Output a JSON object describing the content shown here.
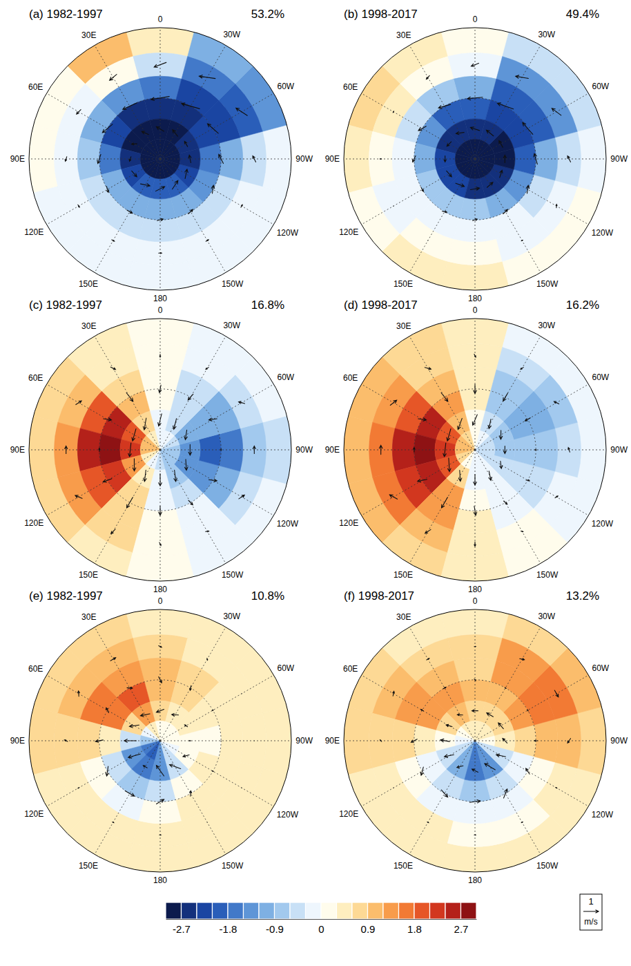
{
  "chart_data": {
    "type": "polar_map",
    "lat_range": [
      30,
      90
    ],
    "lat_circles": [
      60
    ],
    "lon_ticks": [
      0,
      {
        "value": 30,
        "label": "30E"
      },
      {
        "value": 60,
        "label": "60E"
      },
      {
        "value": 90,
        "label": "90E"
      },
      {
        "value": 120,
        "label": "120E"
      },
      {
        "value": 150,
        "label": "150E"
      },
      180,
      {
        "value": -150,
        "label": "150W"
      },
      {
        "value": -120,
        "label": "120W"
      },
      {
        "value": -90,
        "label": "90W"
      },
      {
        "value": -60,
        "label": "60W"
      },
      {
        "value": -30,
        "label": "30W"
      }
    ],
    "cell_lat_edges": [
      30,
      40,
      50,
      60,
      70,
      80,
      90
    ],
    "cell_lons": [
      0,
      30,
      60,
      90,
      120,
      150,
      180,
      -150,
      -120,
      -90,
      -60,
      -30
    ],
    "vector_lats": [
      45,
      60,
      75
    ],
    "colorbar": {
      "range": [
        -3,
        3
      ],
      "levels": [
        -2.7,
        -2.4,
        -2.1,
        -1.8,
        -1.5,
        -1.2,
        -0.9,
        -0.6,
        -0.3,
        0,
        0.3,
        0.6,
        0.9,
        1.2,
        1.5,
        1.8,
        2.1,
        2.4,
        2.7
      ],
      "colors": [
        "#0c1b4d",
        "#13307c",
        "#1a45a2",
        "#2a5eb9",
        "#4279c9",
        "#5e95d7",
        "#7eb0e3",
        "#a2c9ee",
        "#c8e0f6",
        "#eef6fd",
        "#fffcec",
        "#feeebf",
        "#fdd995",
        "#fbbd6c",
        "#f89c4b",
        "#f27a34",
        "#e65627",
        "#d2371f",
        "#b4211a",
        "#8e1214"
      ],
      "ticks": [
        -2.7,
        -1.8,
        -0.9,
        0,
        0.9,
        1.8,
        2.7
      ]
    },
    "reference_vector": {
      "value": 1,
      "label": "m/s"
    },
    "panels": [
      {
        "title": "(a) 1982-1997",
        "variance": {
          "value": 53.2,
          "label": "53.2%"
        },
        "field": [
          [
            0.3,
            0.9,
            0.1,
            0.1,
            -0.1,
            -0.2,
            -0.1,
            -0.1,
            -0.2,
            -0.3,
            -1.5,
            -1.2
          ],
          [
            -0.6,
            0,
            -0.3,
            -0.2,
            -0.3,
            -0.3,
            -0.3,
            -0.2,
            -0.3,
            -0.6,
            -2.1,
            -1.8
          ],
          [
            -1.8,
            -1.5,
            -1.2,
            -0.9,
            -0.6,
            -0.6,
            -0.6,
            -0.6,
            -0.6,
            -1.2,
            -2.4,
            -2.4
          ],
          [
            -2.7,
            -2.7,
            -2.4,
            -1.8,
            -1.2,
            -1.2,
            -1.2,
            -1.2,
            -1.5,
            -1.8,
            -2.4,
            -2.7
          ],
          [
            -3,
            -3,
            -3,
            -2.7,
            -2.4,
            -2.1,
            -2.1,
            -2.1,
            -2.4,
            -2.7,
            -2.7,
            -3
          ],
          [
            -3,
            -3,
            -3,
            -3,
            -3,
            -3,
            -3,
            -3,
            -3,
            -3,
            -3,
            -3
          ]
        ],
        "u": [
          [
            0.8,
            0.6,
            0.4,
            0.3,
            0.2,
            0.2,
            0.2,
            0.2,
            0.2,
            0.4,
            0.8,
            1.0
          ],
          [
            1.2,
            1.0,
            0.8,
            0.6,
            0.4,
            0.4,
            0.4,
            0.4,
            0.5,
            0.6,
            0.9,
            1.2
          ],
          [
            0.5,
            0.3,
            0.2,
            0.3,
            0.5,
            0.6,
            0.6,
            0.6,
            0.6,
            0.5,
            0.4,
            0.5
          ]
        ],
        "v": [
          [
            0.3,
            0.1,
            -0.1,
            -0.1,
            0,
            0,
            0,
            0,
            0,
            0.2,
            0.4,
            0.4
          ],
          [
            0.2,
            -0.1,
            -0.3,
            -0.2,
            -0.1,
            0,
            0.1,
            0.1,
            0.2,
            0.3,
            0.3,
            0.3
          ],
          [
            -0.3,
            -0.4,
            -0.3,
            -0.1,
            0.1,
            0.2,
            0.3,
            0.3,
            0.2,
            0.1,
            0,
            -0.2
          ]
        ]
      },
      {
        "title": "(b) 1998-2017",
        "variance": {
          "value": 49.4,
          "label": "49.4%"
        },
        "field": [
          [
            0,
            0.3,
            0.6,
            0.3,
            0.1,
            0.3,
            0.3,
            0.2,
            0,
            -0.3,
            -0.6,
            -0.6
          ],
          [
            -0.3,
            0,
            0.3,
            0,
            -0.1,
            0,
            0,
            -0.1,
            -0.2,
            -0.6,
            -1.5,
            -1.5
          ],
          [
            -1.2,
            -0.9,
            -0.6,
            -0.3,
            -0.3,
            -0.3,
            -0.3,
            -0.3,
            -0.6,
            -1.2,
            -2.1,
            -2.1
          ],
          [
            -2.1,
            -2.1,
            -1.5,
            -1.2,
            -0.9,
            -0.9,
            -0.9,
            -1.2,
            -1.5,
            -2.1,
            -2.4,
            -2.4
          ],
          [
            -2.7,
            -2.7,
            -2.7,
            -2.4,
            -2.4,
            -2.4,
            -2.7,
            -2.7,
            -2.7,
            -3,
            -3,
            -2.7
          ],
          [
            -3,
            -3,
            -3,
            -3,
            -3,
            -3,
            -3,
            -3,
            -3,
            -3,
            -3,
            -3
          ]
        ],
        "u": [
          [
            0.5,
            0.3,
            0.1,
            0,
            0,
            0,
            0,
            0.1,
            0.2,
            0.4,
            0.7,
            0.8
          ],
          [
            1.0,
            0.8,
            0.5,
            0.4,
            0.3,
            0.3,
            0.3,
            0.4,
            0.5,
            0.7,
            1.0,
            1.1
          ],
          [
            0.6,
            0.5,
            0.4,
            0.4,
            0.5,
            0.6,
            0.6,
            0.5,
            0.5,
            0.5,
            0.5,
            0.6
          ]
        ],
        "v": [
          [
            0.2,
            0.1,
            0,
            -0.1,
            0,
            0,
            0,
            0,
            0.1,
            0.2,
            0.3,
            0.3
          ],
          [
            0.1,
            -0.2,
            -0.3,
            -0.2,
            0,
            0.1,
            0.1,
            0.1,
            0.2,
            0.2,
            0.2,
            0.2
          ],
          [
            -0.2,
            -0.2,
            -0.1,
            0,
            0.1,
            0.1,
            0.1,
            0.1,
            0.1,
            0,
            0,
            -0.1
          ]
        ]
      },
      {
        "title": "(c) 1982-1997",
        "variance": {
          "value": 16.8,
          "label": "16.8%"
        },
        "field": [
          [
            0,
            0.3,
            0.6,
            0.6,
            0.6,
            0.3,
            0,
            -0.1,
            -0.3,
            -0.6,
            -0.3,
            -0.3
          ],
          [
            0,
            0.3,
            0.9,
            1.2,
            1.2,
            0.6,
            0,
            -0.3,
            -0.6,
            -0.9,
            -0.6,
            -0.3
          ],
          [
            0,
            0.6,
            1.8,
            2.4,
            1.8,
            0.6,
            0,
            -0.3,
            -1.2,
            -1.8,
            -1.2,
            -0.6
          ],
          [
            0,
            0.9,
            2.4,
            3,
            2.1,
            0.6,
            -0.3,
            -0.6,
            -1.5,
            -2.1,
            -1.2,
            -0.6
          ],
          [
            -0.3,
            0.6,
            1.8,
            2.1,
            1.2,
            0.3,
            -0.3,
            -0.9,
            -1.5,
            -1.5,
            -1.2,
            -0.6
          ],
          [
            -0.3,
            0.3,
            0.9,
            0.9,
            0.3,
            -0.3,
            -0.6,
            -0.9,
            -0.9,
            -0.9,
            -0.6,
            -0.3
          ]
        ],
        "u": [
          [
            0,
            -0.2,
            -0.4,
            -0.5,
            -0.4,
            -0.1,
            0.1,
            0.2,
            0.4,
            0.5,
            0.3,
            0.1
          ],
          [
            0.1,
            -0.1,
            -0.2,
            -0.2,
            -0.1,
            0,
            0,
            0.1,
            0.2,
            0.1,
            0.2,
            0.1
          ],
          [
            0.2,
            0.5,
            0.8,
            0.9,
            0.7,
            0.3,
            0,
            -0.3,
            -0.6,
            -0.7,
            -0.5,
            -0.2
          ]
        ],
        "v": [
          [
            0.2,
            0.3,
            0.2,
            0,
            -0.3,
            -0.4,
            -0.2,
            -0.1,
            -0.2,
            0,
            0.3,
            0.2
          ],
          [
            0.5,
            0.7,
            0.5,
            0,
            -0.6,
            -0.8,
            -0.6,
            -0.4,
            -0.5,
            0,
            0.5,
            0.5
          ],
          [
            0.8,
            0.6,
            0.2,
            -0.1,
            -0.4,
            -0.7,
            -0.8,
            -0.7,
            -0.4,
            0,
            0.4,
            0.7
          ]
        ]
      },
      {
        "title": "(d) 1998-2017",
        "variance": {
          "value": 16.2,
          "label": "16.2%"
        },
        "field": [
          [
            0.3,
            0.6,
            0.9,
            0.9,
            0.9,
            0.6,
            0.3,
            0,
            -0.1,
            -0.2,
            -0.3,
            -0.3
          ],
          [
            0.3,
            0.6,
            1.2,
            1.5,
            1.5,
            0.9,
            0.3,
            0,
            -0.3,
            -0.6,
            -0.9,
            -0.6
          ],
          [
            0.3,
            0.9,
            1.8,
            2.4,
            2.1,
            1.2,
            0.3,
            -0.1,
            -0.6,
            -0.9,
            -1.2,
            -0.9
          ],
          [
            0.3,
            1.2,
            2.4,
            2.7,
            2.4,
            1.2,
            0,
            -0.3,
            -0.6,
            -0.9,
            -1.2,
            -0.9
          ],
          [
            0,
            0.9,
            1.8,
            2.1,
            1.8,
            0.6,
            -0.1,
            -0.3,
            -0.6,
            -0.9,
            -0.9,
            -0.6
          ],
          [
            0,
            0.6,
            0.9,
            0.9,
            0.6,
            0,
            -0.3,
            -0.3,
            -0.6,
            -0.6,
            -0.6,
            -0.3
          ]
        ],
        "u": [
          [
            -0.1,
            -0.3,
            -0.5,
            -0.6,
            -0.5,
            -0.2,
            0,
            0.1,
            0.2,
            0.3,
            0.3,
            0.1
          ],
          [
            0,
            -0.1,
            -0.2,
            -0.3,
            -0.2,
            0,
            0.1,
            0.1,
            0.1,
            0,
            0,
            0
          ],
          [
            0.3,
            0.6,
            0.8,
            0.9,
            0.8,
            0.4,
            0,
            -0.2,
            -0.4,
            -0.5,
            -0.5,
            -0.2
          ]
        ],
        "v": [
          [
            0.2,
            0.3,
            0.2,
            0,
            -0.3,
            -0.4,
            -0.3,
            -0.1,
            -0.1,
            0.1,
            0.2,
            0.2
          ],
          [
            0.6,
            0.7,
            0.5,
            0,
            -0.6,
            -0.8,
            -0.6,
            -0.3,
            -0.2,
            0.1,
            0.4,
            0.6
          ],
          [
            0.7,
            0.5,
            0.2,
            -0.1,
            -0.4,
            -0.6,
            -0.7,
            -0.6,
            -0.3,
            0,
            0.3,
            0.6
          ]
        ]
      },
      {
        "title": "(e) 1982-1997",
        "variance": {
          "value": 10.8,
          "label": "10.8%"
        },
        "field": [
          [
            0.3,
            0.6,
            0.6,
            0.6,
            0.3,
            0.3,
            0.3,
            0.3,
            0.3,
            0.3,
            0.3,
            0.3
          ],
          [
            0.6,
            0.9,
            0.9,
            0.6,
            0.3,
            0.3,
            0.3,
            0.3,
            0.3,
            0.3,
            0.3,
            0.3
          ],
          [
            0.9,
            1.2,
            1.5,
            0.6,
            0,
            -0.3,
            0,
            0.3,
            0.3,
            0.3,
            0.3,
            0.6
          ],
          [
            0.9,
            1.8,
            1.5,
            0.3,
            -0.6,
            -0.9,
            -0.6,
            0,
            0.3,
            0,
            0.3,
            0.6
          ],
          [
            0.6,
            1.2,
            0.6,
            -0.6,
            -1.5,
            -1.8,
            -1.5,
            -0.6,
            0,
            0,
            0.3,
            0.3
          ],
          [
            0,
            0.3,
            -0.3,
            -0.9,
            -1.8,
            -2.1,
            -1.5,
            -0.6,
            -0.3,
            0,
            0,
            0
          ]
        ],
        "u": [
          [
            -0.2,
            -0.4,
            -0.3,
            -0.1,
            0,
            0.1,
            0.1,
            0,
            0,
            0,
            0,
            -0.1
          ],
          [
            -0.2,
            -0.3,
            -0.2,
            0.1,
            0.5,
            0.7,
            0.5,
            0.2,
            0,
            0,
            0,
            -0.1
          ],
          [
            0.5,
            0.6,
            0.4,
            0,
            -0.2,
            -0.3,
            -0.5,
            -0.5,
            -0.3,
            0,
            0.2,
            0.4
          ]
        ],
        "v": [
          [
            0.1,
            0,
            -0.2,
            -0.2,
            -0.1,
            0,
            0,
            0,
            0,
            0,
            0,
            0.1
          ],
          [
            0.4,
            0.2,
            -0.3,
            -0.5,
            -0.4,
            0,
            0.3,
            0.3,
            0.1,
            0,
            0.1,
            0.3
          ],
          [
            0.2,
            -0.2,
            -0.5,
            -0.8,
            -0.8,
            0,
            0.7,
            0.6,
            0.3,
            0.1,
            0.1,
            0.2
          ]
        ]
      },
      {
        "title": "(f) 1998-2017",
        "variance": {
          "value": 13.2,
          "label": "13.2%"
        },
        "field": [
          [
            0.3,
            0.3,
            0.6,
            0.6,
            0.3,
            0.3,
            0.3,
            0.3,
            0.3,
            0.6,
            0.9,
            0.6
          ],
          [
            0.6,
            0.6,
            0.9,
            0.6,
            0.3,
            0.3,
            0,
            0,
            0.3,
            0.9,
            1.5,
            1.2
          ],
          [
            0.6,
            0.9,
            1.2,
            0.6,
            0,
            -0.3,
            -0.3,
            -0.3,
            0,
            0.9,
            1.5,
            1.2
          ],
          [
            0.9,
            1.2,
            1.2,
            0.3,
            -0.3,
            -0.6,
            -0.9,
            -0.6,
            -0.3,
            0.6,
            1.2,
            0.9
          ],
          [
            0.6,
            0.9,
            0.6,
            0,
            -0.6,
            -1.2,
            -1.8,
            -1.5,
            -0.6,
            0.3,
            0.6,
            0.6
          ],
          [
            0.3,
            0.3,
            0,
            -0.3,
            -0.6,
            -1.2,
            -1.8,
            -1.5,
            -0.6,
            0,
            0.3,
            0.3
          ]
        ],
        "u": [
          [
            -0.1,
            -0.2,
            -0.3,
            -0.1,
            0,
            0.1,
            0.1,
            0.1,
            0,
            -0.3,
            -0.5,
            -0.3
          ],
          [
            -0.1,
            -0.2,
            0,
            0.2,
            0.4,
            0.6,
            0.7,
            0.5,
            0.2,
            0,
            -0.1,
            -0.1
          ],
          [
            0.4,
            0.3,
            0.1,
            -0.1,
            -0.2,
            -0.3,
            -0.4,
            -0.4,
            -0.2,
            0.3,
            0.5,
            0.5
          ]
        ],
        "v": [
          [
            0,
            0,
            -0.1,
            -0.1,
            0,
            0,
            0,
            0,
            0.1,
            0.2,
            0,
            -0.1
          ],
          [
            0.1,
            0,
            -0.2,
            -0.4,
            -0.4,
            -0.2,
            0.1,
            0.4,
            0.4,
            0.2,
            0,
            0
          ],
          [
            0,
            -0.2,
            -0.4,
            -0.6,
            -0.6,
            -0.3,
            0.2,
            0.7,
            0.6,
            0.3,
            0.1,
            0
          ]
        ]
      }
    ]
  }
}
